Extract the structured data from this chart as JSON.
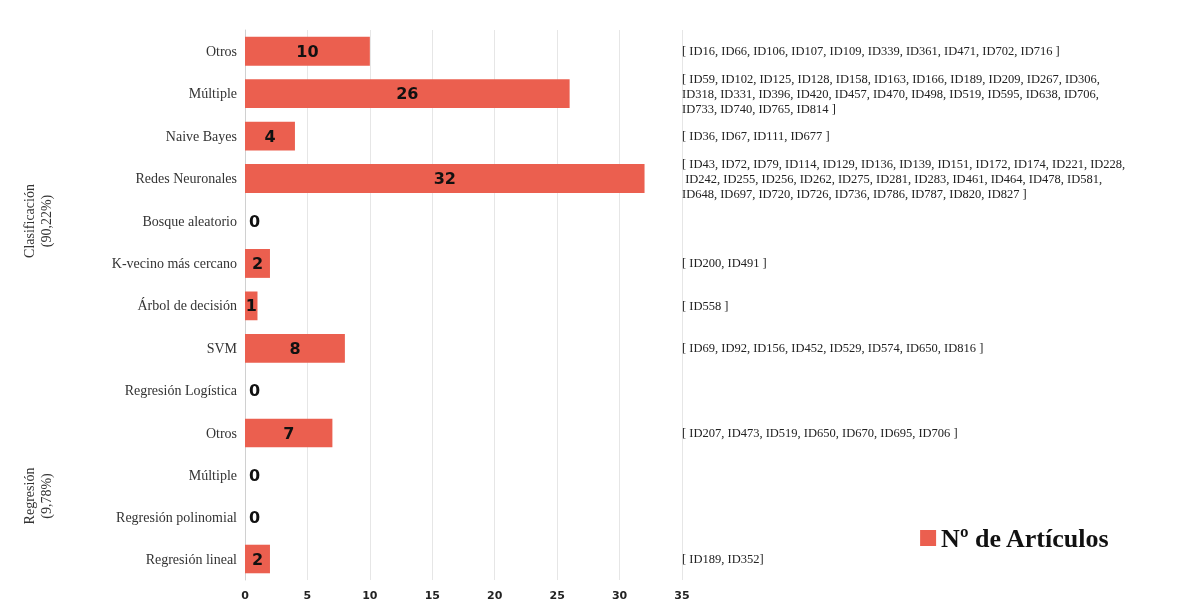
{
  "chart_data": [
    {
      "type": "bar",
      "orientation": "horizontal",
      "ylabel": "Clasificación\n(90,22%)",
      "categories": [
        "Otros",
        "Múltiple",
        "Naive Bayes",
        "Redes Neuronales",
        "Bosque aleatorio",
        "K-vecino más cercano",
        "Árbol de decisión",
        "SVM",
        "Regresión Logística"
      ],
      "series": [
        {
          "color": "#eb5f4f",
          "values": [
            10,
            26,
            4,
            32,
            0,
            2,
            1,
            8,
            0
          ]
        }
      ],
      "xlim": [
        0,
        35
      ],
      "xticks": [
        0,
        5,
        10,
        15,
        20,
        25,
        30,
        35
      ],
      "tick_labels": "y",
      "grid": "x",
      "data_labels": true,
      "annotations": [
        "[ ID16, ID66, ID106, ID107, ID109, ID339, ID361, ID471, ID702, ID716 ]",
        "[ ID59, ID102, ID125, ID128, ID158, ID163, ID166, ID189, ID209, ID267, ID306, ID318, ID331, ID396, ID420, ID457, ID470, ID498, ID519, ID595, ID638, ID706, ID733, ID740, ID765, ID814 ]",
        "[ ID36, ID67, ID111, ID677 ]",
        "[ ID43, ID72, ID79, ID114, ID129, ID136, ID139, ID151, ID172, ID174, ID221, ID228, ID242, ID255, ID256, ID262, ID275, ID281, ID283, ID461, ID464, ID478, ID581, ID648, ID697, ID720, ID726, ID736, ID786, ID787, ID820, ID827 ]",
        "[ ID200, ID491 ]",
        "[ ID558 ]",
        "[ ID69, ID92, ID156, ID452, ID529, ID574, ID650, ID816 ]"
      ]
    },
    {
      "type": "bar",
      "orientation": "horizontal",
      "ylabel": "Regresión\n(9,78%)",
      "categories": [
        "Otros",
        "Múltiple",
        "Regresión polinomial",
        "Regresión lineal"
      ],
      "series": [
        {
          "name": "Nº de Artículos",
          "color": "#eb5f4f",
          "values": [
            7,
            0,
            0,
            2
          ]
        }
      ],
      "xlim": [
        0,
        35
      ],
      "xticks": [
        0,
        5,
        10,
        15,
        20,
        25,
        30,
        35
      ],
      "grid": "x",
      "data_labels": true,
      "legend": "bottom right",
      "annotations": [
        "[ ID207, ID473, ID519, ID650, ID670, ID695, ID706 ]",
        "[ ID189, ID352]"
      ]
    }
  ]
}
